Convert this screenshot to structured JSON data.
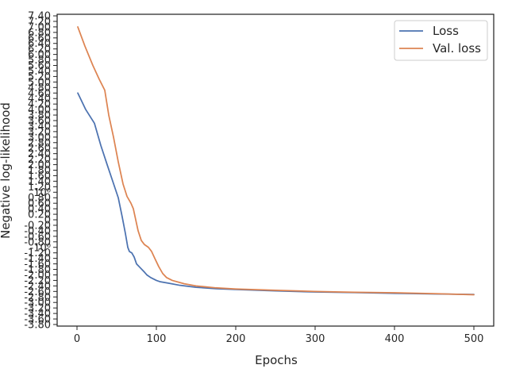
{
  "chart_data": {
    "type": "line",
    "xlabel": "Epochs",
    "ylabel": "Negative log-likelihood",
    "xlim": [
      -25,
      525
    ],
    "ylim": [
      -3.8,
      7.4
    ],
    "grid": false,
    "legend_position": "top-right",
    "x_ticks": [
      0,
      100,
      200,
      300,
      400,
      500
    ],
    "x_tick_labels": [
      "0",
      "100",
      "200",
      "300",
      "400",
      "500"
    ],
    "y_ticks": [
      -3.8,
      -3.6,
      -3.4,
      -3.2,
      -3.0,
      -2.8,
      -2.6,
      -2.4,
      -2.2,
      -2.0,
      -1.8,
      -1.6,
      -1.4,
      -1.2,
      -1.0,
      -0.8,
      -0.6,
      -0.4,
      -0.2,
      0,
      0.2,
      0.4,
      0.6,
      0.8,
      1.0,
      1.2,
      1.4,
      1.6,
      1.8,
      2.0,
      2.2,
      2.4,
      2.6,
      2.8,
      3.0,
      3.2,
      3.4,
      3.6,
      3.8,
      4.0,
      4.2,
      4.4,
      4.6,
      4.8,
      5.0,
      5.2,
      5.4,
      5.6,
      5.8,
      6.0,
      6.2,
      6.4,
      6.6,
      6.8,
      7.0,
      7.2,
      7.4
    ],
    "y_tick_labels": [
      "-3.80",
      "-3.60",
      "-3.40",
      "-3.20",
      "-3.00",
      "-2.80",
      "-2.60",
      "-2.40",
      "-2.20",
      "-2.00",
      "-1.80",
      "-1.60",
      "-1.40",
      "-1.20",
      "-10⁰",
      "-0.80",
      "-0.60",
      "-0.40",
      "-0.20",
      "0",
      "0.20",
      "0.40",
      "0.60",
      "0.80",
      "10⁰",
      "1.20",
      "1.40",
      "1.60",
      "1.80",
      "2.00",
      "2.20",
      "2.40",
      "2.60",
      "2.80",
      "3.00",
      "3.20",
      "3.40",
      "3.60",
      "3.80",
      "4.00",
      "4.20",
      "4.40",
      "4.60",
      "4.80",
      "5.00",
      "5.20",
      "5.40",
      "5.60",
      "5.80",
      "6.00",
      "6.20",
      "6.40",
      "6.60",
      "6.80",
      "7.00",
      "7.20",
      "7.40"
    ],
    "series": [
      {
        "name": "Loss",
        "color": "#4c72b0",
        "points": [
          [
            1,
            4.6
          ],
          [
            11,
            4.0
          ],
          [
            22,
            3.5
          ],
          [
            30,
            2.7
          ],
          [
            38,
            2.0
          ],
          [
            45,
            1.4
          ],
          [
            52,
            0.8
          ],
          [
            57,
            0.1
          ],
          [
            61,
            -0.5
          ],
          [
            64,
            -1.0
          ],
          [
            66,
            -1.15
          ],
          [
            69,
            -1.2
          ],
          [
            72,
            -1.35
          ],
          [
            75,
            -1.6
          ],
          [
            80,
            -1.75
          ],
          [
            85,
            -1.9
          ],
          [
            88,
            -2.0
          ],
          [
            93,
            -2.1
          ],
          [
            100,
            -2.2
          ],
          [
            105,
            -2.25
          ],
          [
            115,
            -2.3
          ],
          [
            130,
            -2.38
          ],
          [
            150,
            -2.45
          ],
          [
            175,
            -2.5
          ],
          [
            200,
            -2.53
          ],
          [
            250,
            -2.58
          ],
          [
            300,
            -2.62
          ],
          [
            350,
            -2.64
          ],
          [
            400,
            -2.67
          ],
          [
            450,
            -2.69
          ],
          [
            500,
            -2.71
          ]
        ]
      },
      {
        "name": "Val. loss",
        "color": "#dd8452",
        "points": [
          [
            1,
            7.0
          ],
          [
            10,
            6.3
          ],
          [
            20,
            5.6
          ],
          [
            28,
            5.1
          ],
          [
            35,
            4.7
          ],
          [
            40,
            3.8
          ],
          [
            46,
            3.0
          ],
          [
            52,
            2.1
          ],
          [
            58,
            1.3
          ],
          [
            63,
            0.85
          ],
          [
            68,
            0.6
          ],
          [
            71,
            0.4
          ],
          [
            74,
            0.0
          ],
          [
            77,
            -0.4
          ],
          [
            81,
            -0.75
          ],
          [
            85,
            -0.9
          ],
          [
            90,
            -1.0
          ],
          [
            94,
            -1.15
          ],
          [
            98,
            -1.4
          ],
          [
            103,
            -1.7
          ],
          [
            108,
            -1.95
          ],
          [
            113,
            -2.1
          ],
          [
            120,
            -2.2
          ],
          [
            135,
            -2.32
          ],
          [
            150,
            -2.4
          ],
          [
            175,
            -2.47
          ],
          [
            200,
            -2.51
          ],
          [
            250,
            -2.56
          ],
          [
            300,
            -2.6
          ],
          [
            350,
            -2.63
          ],
          [
            400,
            -2.65
          ],
          [
            450,
            -2.68
          ],
          [
            500,
            -2.72
          ]
        ]
      }
    ]
  }
}
